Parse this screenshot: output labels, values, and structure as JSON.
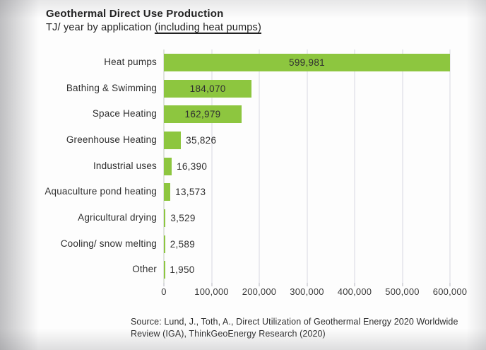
{
  "page": {
    "title": "Geothermal Direct Use Production",
    "subtitle_prefix": "TJ/ year by application ",
    "subtitle_underlined": "(including heat pumps)",
    "source_line1": "Source: Lund, J., Toth, A., Direct Utilization of Geothermal Energy 2020 Worldwide",
    "source_line2": "Review (IGA), ThinkGeoEnergy Research (2020)"
  },
  "chart_data": {
    "type": "bar",
    "orientation": "horizontal",
    "title": "Geothermal Direct Use Production",
    "subtitle": "TJ/ year by application (including heat pumps)",
    "categories": [
      "Heat pumps",
      "Bathing & Swimming",
      "Space Heating",
      "Greenhouse Heating",
      "Industrial uses",
      "Aquaculture pond heating",
      "Agricultural drying",
      "Cooling/ snow melting",
      "Other"
    ],
    "values": [
      599981,
      184070,
      162979,
      35826,
      16390,
      13573,
      3529,
      2589,
      1950
    ],
    "value_labels": [
      "599,981",
      "184,070",
      "162,979",
      "35,826",
      "16,390",
      "13,573",
      "3,529",
      "2,589",
      "1,950"
    ],
    "xlabel": "",
    "ylabel": "",
    "xlim": [
      0,
      600000
    ],
    "x_tick_interval": 100000,
    "x_tick_labels": [
      "0",
      "100,000",
      "200,000",
      "300,000",
      "400,000",
      "500,000",
      "600,000"
    ],
    "grid": "vertical",
    "legend": "none",
    "bar_color": "#8dc63f",
    "source": "Source: Lund, J., Toth, A., Direct Utilization of Geothermal Energy 2020 Worldwide Review (IGA), ThinkGeoEnergy Research (2020)"
  }
}
